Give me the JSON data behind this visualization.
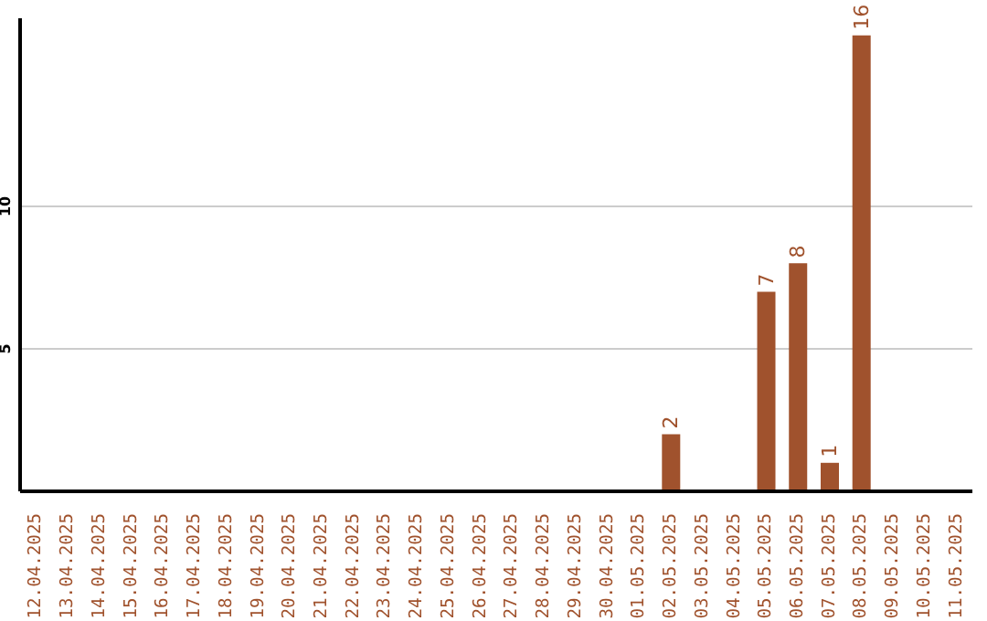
{
  "chart_data": {
    "type": "bar",
    "categories": [
      "12.04.2025",
      "13.04.2025",
      "14.04.2025",
      "15.04.2025",
      "16.04.2025",
      "17.04.2025",
      "18.04.2025",
      "19.04.2025",
      "20.04.2025",
      "21.04.2025",
      "22.04.2025",
      "23.04.2025",
      "24.04.2025",
      "25.04.2025",
      "26.04.2025",
      "27.04.2025",
      "28.04.2025",
      "29.04.2025",
      "30.04.2025",
      "01.05.2025",
      "02.05.2025",
      "03.05.2025",
      "04.05.2025",
      "05.05.2025",
      "06.05.2025",
      "07.05.2025",
      "08.05.2025",
      "09.05.2025",
      "10.05.2025",
      "11.05.2025"
    ],
    "values": [
      0,
      0,
      0,
      0,
      0,
      0,
      0,
      0,
      0,
      0,
      0,
      0,
      0,
      0,
      0,
      0,
      0,
      0,
      0,
      0,
      2,
      0,
      0,
      7,
      8,
      1,
      16,
      0,
      0,
      0
    ],
    "value_labels": [
      null,
      null,
      null,
      null,
      null,
      null,
      null,
      null,
      null,
      null,
      null,
      null,
      null,
      null,
      null,
      null,
      null,
      null,
      null,
      null,
      "2",
      null,
      null,
      "7",
      "8",
      "1",
      "16",
      null,
      null,
      null
    ],
    "color": "#a0522d",
    "ylim": [
      0,
      16.6
    ],
    "yticks": [
      5,
      10
    ],
    "grid": "y",
    "legend": false
  }
}
